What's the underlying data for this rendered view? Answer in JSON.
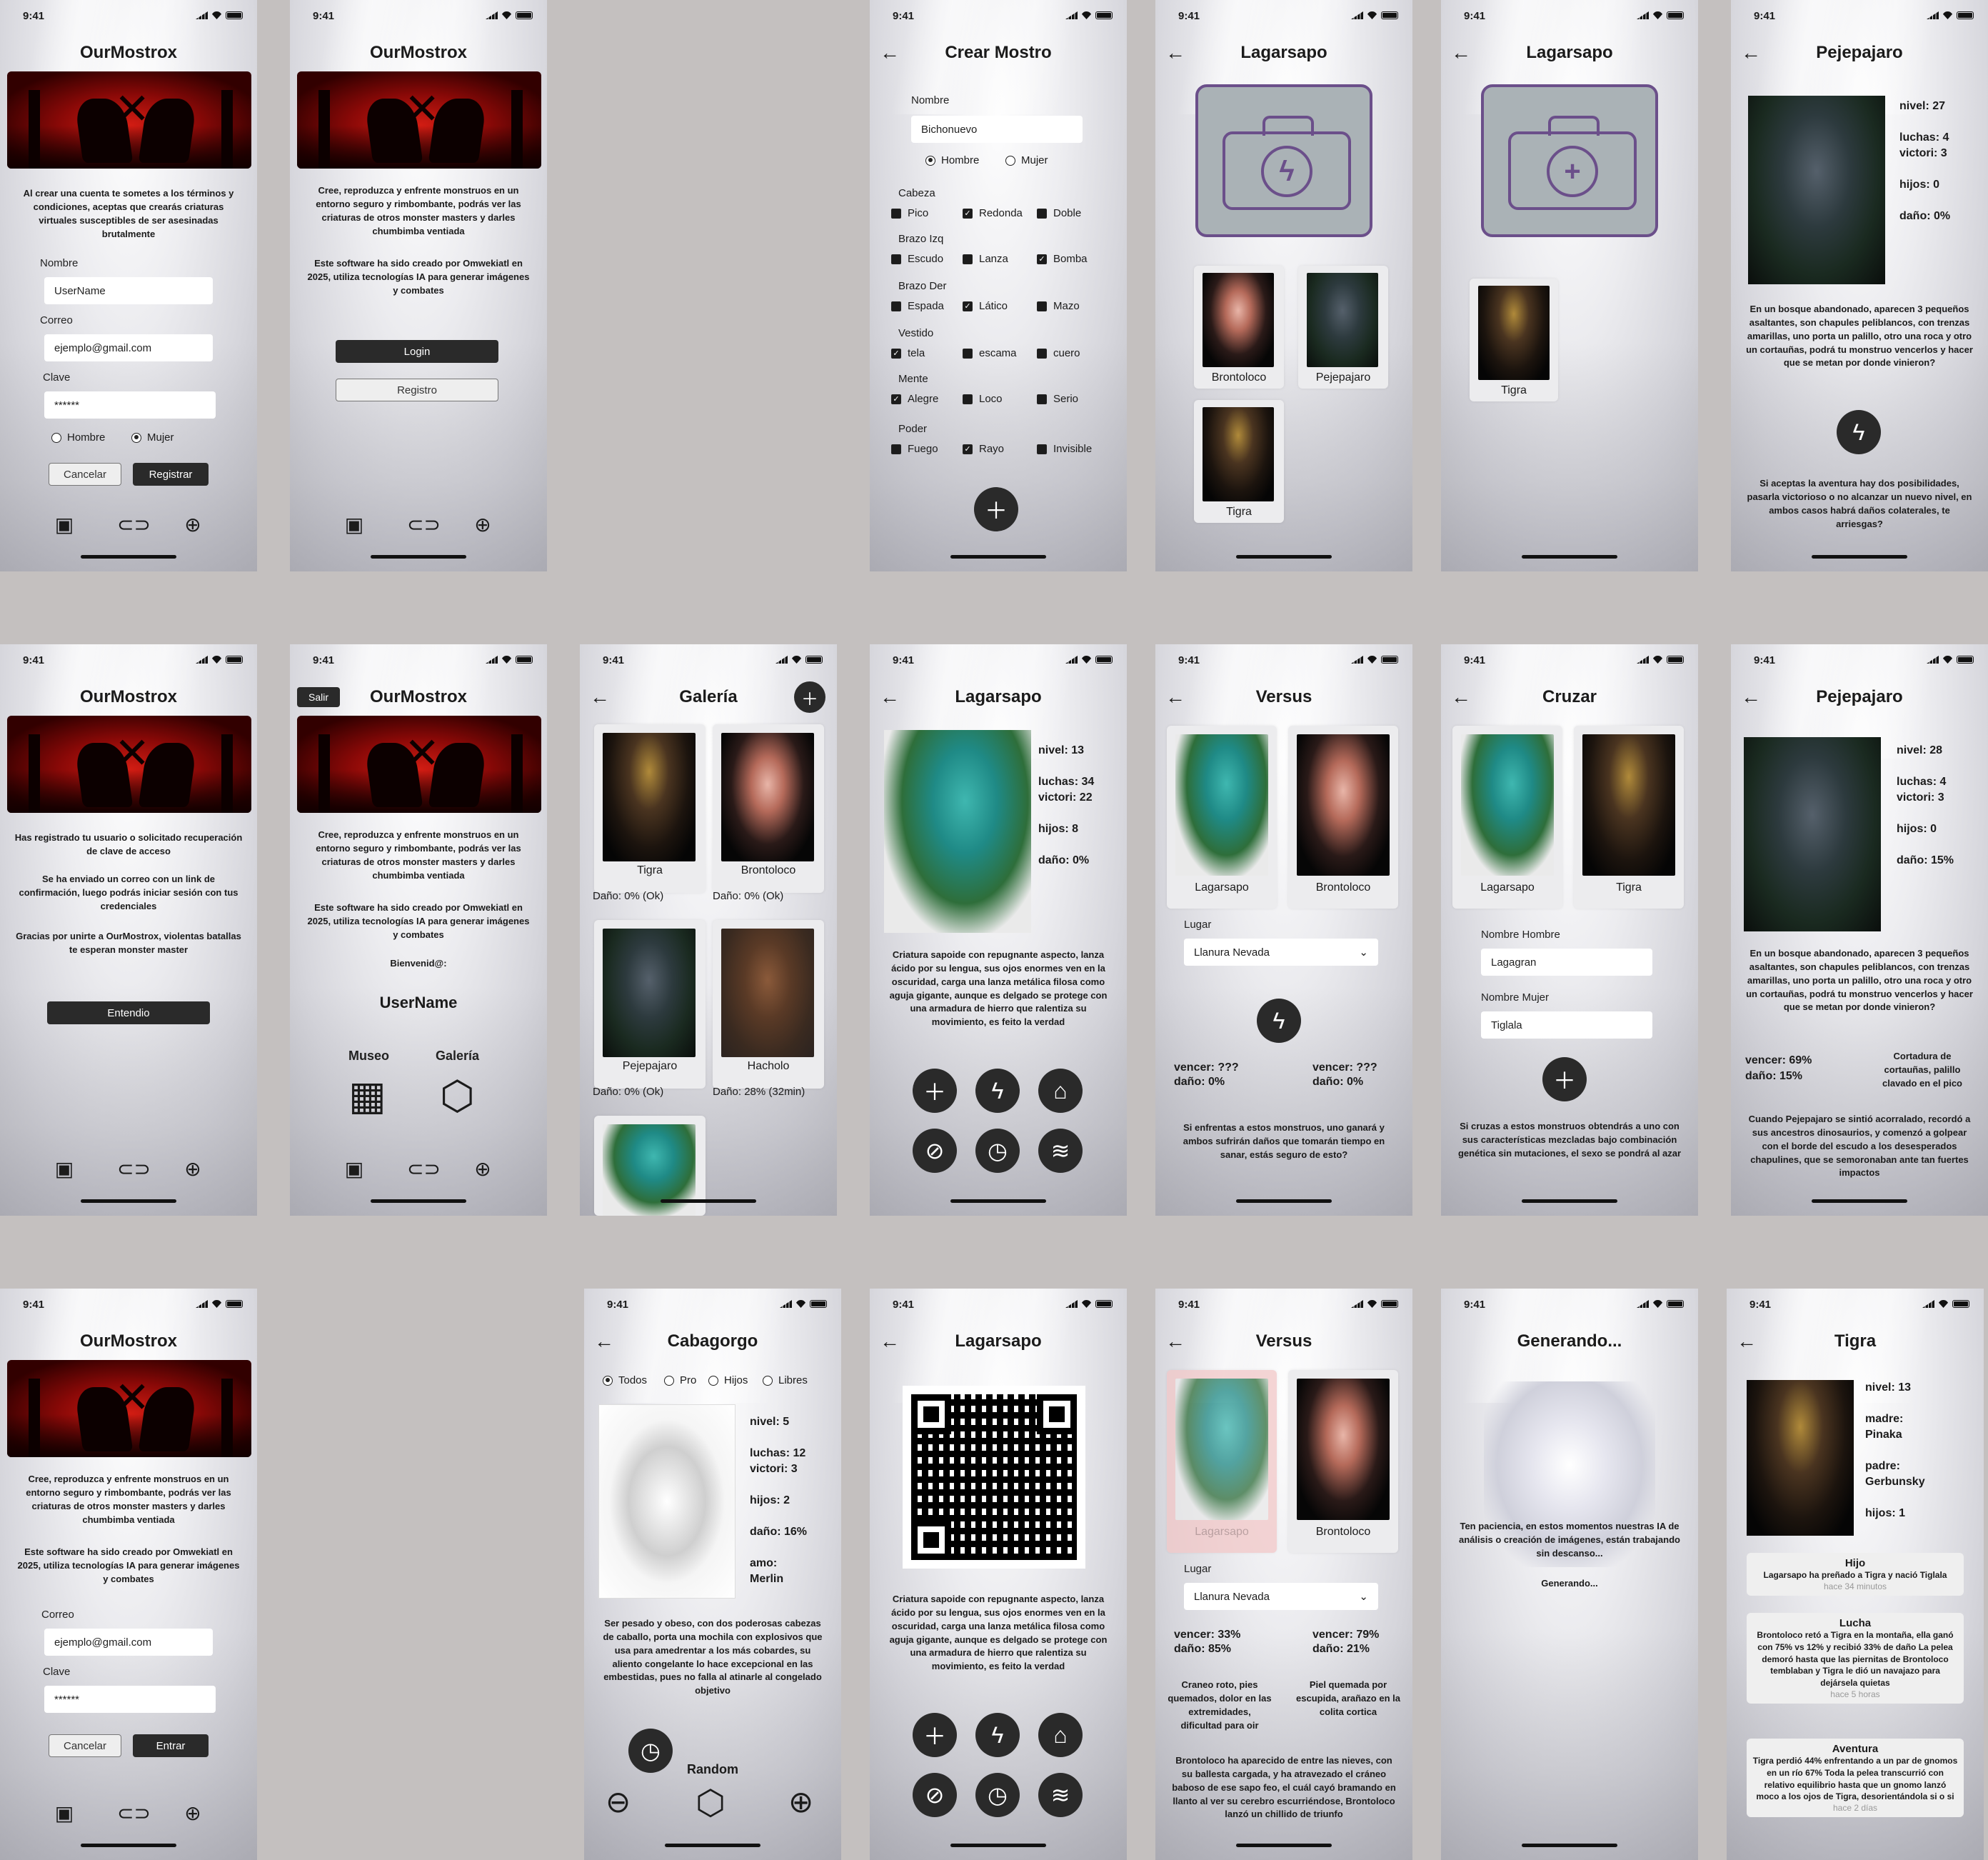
{
  "status_time": "9:41",
  "app_name": "OurMostrox",
  "nav_icons": [
    "twitch-icon",
    "link-icon",
    "globe-icon"
  ],
  "register": {
    "terms": "Al crear una cuenta te sometes a los términos y condiciones, aceptas que crearás criaturas virtuales susceptibles de ser asesinadas brutalmente",
    "nombre_label": "Nombre",
    "nombre_value": "UserName",
    "correo_label": "Correo",
    "correo_value": "ejemplo@gmail.com",
    "clave_label": "Clave",
    "clave_value": "******",
    "hombre": "Hombre",
    "mujer": "Mujer",
    "cancel": "Cancelar",
    "submit": "Registrar"
  },
  "welcome": {
    "intro": "Cree, reproduzca y enfrente monstruos en un entorno seguro y rimbombante, podrás ver las criaturas de otros monster masters y darles chumbimba ventiada",
    "credits": "Este software ha sido creado por Omwekiatl en 2025, utiliza tecnologías IA para generar imágenes y combates",
    "login": "Login",
    "registro": "Registro"
  },
  "crear": {
    "title": "Crear Mostro",
    "nombre_label": "Nombre",
    "nombre_value": "Bichonuevo",
    "hombre": "Hombre",
    "mujer": "Mujer",
    "groups": [
      {
        "name": "Cabeza",
        "opts": [
          "Pico",
          "Redonda",
          "Doble"
        ]
      },
      {
        "name": "Brazo Izq",
        "opts": [
          "Escudo",
          "Lanza",
          "Bomba"
        ]
      },
      {
        "name": "Brazo Der",
        "opts": [
          "Espada",
          "Lático",
          "Mazo"
        ]
      },
      {
        "name": "Vestido",
        "opts": [
          "tela",
          "escama",
          "cuero"
        ]
      },
      {
        "name": "Mente",
        "opts": [
          "Alegre",
          "Loco",
          "Serio"
        ]
      },
      {
        "name": "Poder",
        "opts": [
          "Fuego",
          "Rayo",
          "Invisible"
        ]
      }
    ]
  },
  "lagarsapo": "Lagarsapo",
  "names": {
    "bronto": "Brontoloco",
    "peje": "Pejepajaro",
    "tigra": "Tigra",
    "hacholo": "Hacholo",
    "lagarsapo": "Lagarsapo"
  },
  "peje1": {
    "title": "Pejepajaro",
    "nivel": "nivel: 27",
    "luchas": "luchas: 4",
    "victori": "victori: 3",
    "hijos": "hijos: 0",
    "dano": "daño: 0%",
    "story": "En un bosque abandonado, aparecen 3 pequeños asaltantes, son chapules peliblancos, con trenzas amarillas, uno porta un palillo, otro una roca y otro un cortauñas, podrá tu monstruo vencerlos y hacer que se metan por donde vinieron?",
    "question": "Si aceptas la aventura hay dos posibilidades, pasarla victorioso o no alcanzar un nuevo nivel, en ambos casos habrá daños colaterales, te arriesgas?"
  },
  "confirm": {
    "p1": "Has registrado tu usuario o solicitado recuperación de clave de acceso",
    "p2": "Se ha enviado un correo con un link de confirmación, luego podrás iniciar sesión con tus credenciales",
    "p3": "Gracias por unirte a OurMostrox, violentas batallas te esperan monster master",
    "ok": "Entendio"
  },
  "home": {
    "salir": "Salir",
    "bienvenido": "Bienvenid@:",
    "username": "UserName",
    "museo": "Museo",
    "galeria": "Galería"
  },
  "galeria": {
    "title": "Galería",
    "d_tigra": "Daño: 0% (Ok)",
    "d_bronto": "Daño: 0% (Ok)",
    "d_peje": "Daño: 0% (Ok)",
    "d_hacholo": "Daño: 28% (32min)"
  },
  "lag_detail": {
    "nivel": "nivel: 13",
    "luchas": "luchas: 34",
    "victori": "victori: 22",
    "hijos": "hijos: 8",
    "dano": "daño: 0%",
    "desc": "Criatura sapoide con repugnante aspecto, lanza ácido por su lengua, sus ojos enormes ven en la oscuridad, carga una lanza metálica filosa como aguja gigante, aunque es delgado se protege con una armadura de hierro que ralentiza su movimiento, es feito la verdad"
  },
  "versus": {
    "title": "Versus",
    "lugar": "Lugar",
    "place": "Llanura Nevada",
    "v1": "vencer: ???",
    "d1": "daño: 0%",
    "v2": "vencer: ???",
    "d2": "daño: 0%",
    "warn": "Si enfrentas a estos monstruos, uno ganará y ambos sufrirán daños que tomarán tiempo en sanar, estás seguro de esto?"
  },
  "cruzar": {
    "title": "Cruzar",
    "nh_label": "Nombre Hombre",
    "nh_value": "Lagagran",
    "nm_label": "Nombre Mujer",
    "nm_value": "Tiglala",
    "note": "Si cruzas a estos monstruos obtendrás a uno con sus características mezcladas bajo combinación genética sin mutaciones, el sexo se pondrá al azar"
  },
  "peje2": {
    "nivel": "nivel: 28",
    "luchas": "luchas: 4",
    "victori": "victori: 3",
    "hijos": "hijos: 0",
    "dano": "daño: 15%",
    "vencer": "vencer: 69%",
    "dano2": "daño: 15%",
    "weapon": "Cortadura de cortauñas, palillo clavado en el pico",
    "result": "Cuando Pejepajaro se sintió acorralado, recordó a sus ancestros dinosaurios, y comenzó a golpear con el borde del escudo a los desesperados chapulines, que se semoronaban ante tan fuertes impactos"
  },
  "login2": {
    "correo_label": "Correo",
    "correo_value": "ejemplo@gmail.com",
    "clave_label": "Clave",
    "clave_value": "******",
    "cancel": "Cancelar",
    "enter": "Entrar"
  },
  "caba": {
    "title": "Cabagorgo",
    "filters": [
      "Todos",
      "Pro",
      "Hijos",
      "Libres"
    ],
    "nivel": "nivel: 5",
    "luchas": "luchas: 12",
    "victori": "victori: 3",
    "hijos": "hijos: 2",
    "dano": "daño: 16%",
    "amo": "amo:",
    "amo_name": "Merlin",
    "desc": "Ser pesado y obeso, con dos poderosas cabezas de caballo, porta una mochila con explosivos que usa para amedrentar a los más cobardes, su aliento congelante lo hace excepcional en las embestidas, pues no falla al atinarle al congelado objetivo",
    "random": "Random"
  },
  "versus2": {
    "v1": "vencer: 33%",
    "d1": "daño: 85%",
    "v2": "vencer: 79%",
    "d2": "daño: 21%",
    "i1": "Craneo roto, pies quemados, dolor en las extremidades, dificultad para oir",
    "i2": "Piel quemada por escupida, arañazo en la colita cortica",
    "story": "Brontoloco ha aparecido de entre las nieves, con su ballesta cargada, y ha atravezado el cráneo baboso de ese sapo feo, el cuál cayó bramando en llanto al ver su cerebro escurriéndose, Brontoloco lanzó un chillido de triunfo"
  },
  "gen": {
    "title": "Generando...",
    "msg": "Ten paciencia, en estos momentos nuestras IA de análisis o creación de imágenes, están trabajando sin descanso...",
    "sub": "Generando..."
  },
  "tigra": {
    "title": "Tigra",
    "nivel": "nivel: 13",
    "madre": "madre:",
    "madre_name": "Pinaka",
    "padre": "padre:",
    "padre_name": "Gerbunsky",
    "hijos": "hijos: 1",
    "n1_title": "Hijo",
    "n1_body": "Lagarsapo ha preñado a Tigra y nació Tiglala",
    "n1_time": "hace 34 minutos",
    "n2_title": "Lucha",
    "n2_body": "Brontoloco retó a Tigra en la montaña, ella ganó con 75% vs 12% y recibió 33% de daño La pelea demoró hasta que las piernitas de Brontoloco temblaban y Tigra le dió un navajazo para dejársela quietas",
    "n2_time": "hace 5 horas",
    "n3_title": "Aventura",
    "n3_body": "Tigra perdió 44% enfrentando a un par de gnomos en un río 67% Toda la pelea transcurrió con relativo equilibrio hasta que un gnomo lanzó moco a los ojos de Tigra, desorientándola si o si",
    "n3_time": "hace 2 días"
  }
}
